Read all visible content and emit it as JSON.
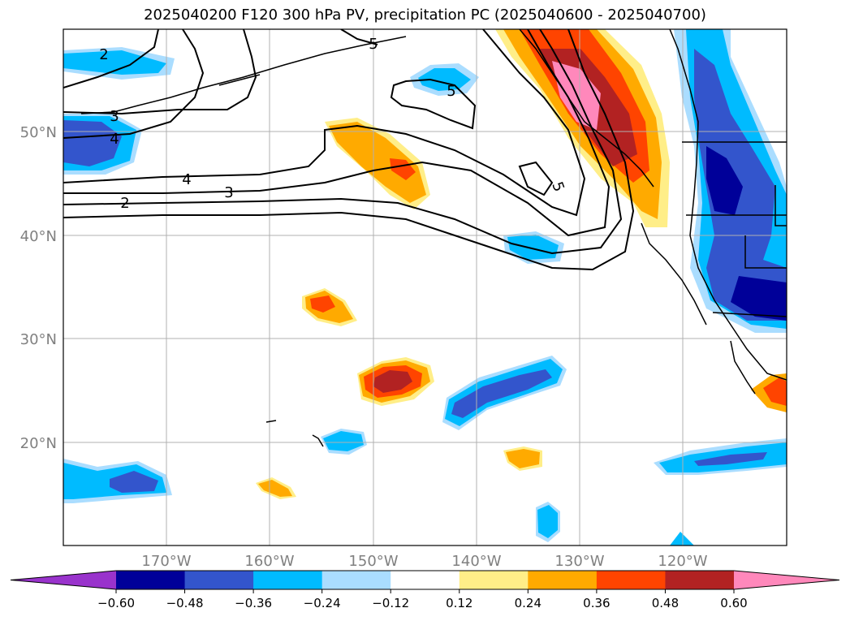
{
  "title": "2025040200 F120 300 hPa PV, precipitation PC (2025040600 - 2025040700)",
  "lat_labels": [
    "20°N",
    "30°N",
    "40°N",
    "50°N"
  ],
  "lon_labels": [
    "170°W",
    "160°W",
    "150°W",
    "140°W",
    "130°W",
    "120°W"
  ],
  "contour_labels": [
    "2",
    "3",
    "4",
    "5",
    "2",
    "3",
    "4",
    "5",
    "5"
  ],
  "colorbar": {
    "ticks": [
      "−0.60",
      "−0.48",
      "−0.36",
      "−0.24",
      "−0.12",
      "0.12",
      "0.24",
      "0.36",
      "0.48",
      "0.60"
    ],
    "colors": [
      "#9933cc",
      "#000099",
      "#3355cc",
      "#00bbff",
      "#aaddff",
      "#ffffff",
      "#ffee88",
      "#ffaa00",
      "#ff4400",
      "#b22222",
      "#ff88bb"
    ]
  },
  "colors": {
    "neg_strong": "#000099",
    "neg_mid": "#3355cc",
    "neg_light": "#00bbff",
    "neg_pale": "#aaddff",
    "pos_pale": "#ffee88",
    "pos_light": "#ffaa00",
    "pos_mid": "#ff4400",
    "pos_strong": "#b22222",
    "pos_max": "#ff88bb"
  }
}
